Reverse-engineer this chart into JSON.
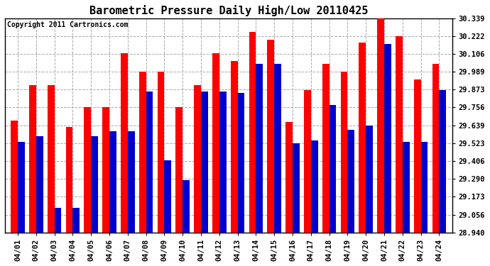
{
  "title": "Barometric Pressure Daily High/Low 20110425",
  "copyright": "Copyright 2011 Cartronics.com",
  "dates": [
    "04/01",
    "04/02",
    "04/03",
    "04/04",
    "04/05",
    "04/06",
    "04/07",
    "04/08",
    "04/09",
    "04/10",
    "04/11",
    "04/12",
    "04/13",
    "04/14",
    "04/15",
    "04/16",
    "04/17",
    "04/18",
    "04/19",
    "04/20",
    "04/21",
    "04/22",
    "04/23",
    "04/24"
  ],
  "highs": [
    29.67,
    29.9,
    29.9,
    29.63,
    29.76,
    29.76,
    30.11,
    29.99,
    29.99,
    29.76,
    29.9,
    30.11,
    30.06,
    30.25,
    30.2,
    29.66,
    29.87,
    30.04,
    29.99,
    30.18,
    30.34,
    30.22,
    29.94,
    30.04
  ],
  "lows": [
    29.53,
    29.57,
    29.1,
    29.1,
    29.57,
    29.6,
    29.6,
    29.86,
    29.41,
    29.28,
    29.86,
    29.86,
    29.85,
    30.04,
    30.04,
    29.52,
    29.54,
    29.77,
    29.61,
    29.64,
    30.17,
    29.53,
    29.53,
    29.87
  ],
  "high_color": "#ff0000",
  "low_color": "#0000cc",
  "bg_color": "#ffffff",
  "grid_color": "#aaaaaa",
  "ymin": 28.94,
  "ymax": 30.339,
  "yticks": [
    28.94,
    29.056,
    29.173,
    29.29,
    29.406,
    29.523,
    29.639,
    29.756,
    29.873,
    29.989,
    30.106,
    30.222,
    30.339
  ],
  "title_fontsize": 11,
  "copyright_fontsize": 7,
  "bar_width": 0.38
}
